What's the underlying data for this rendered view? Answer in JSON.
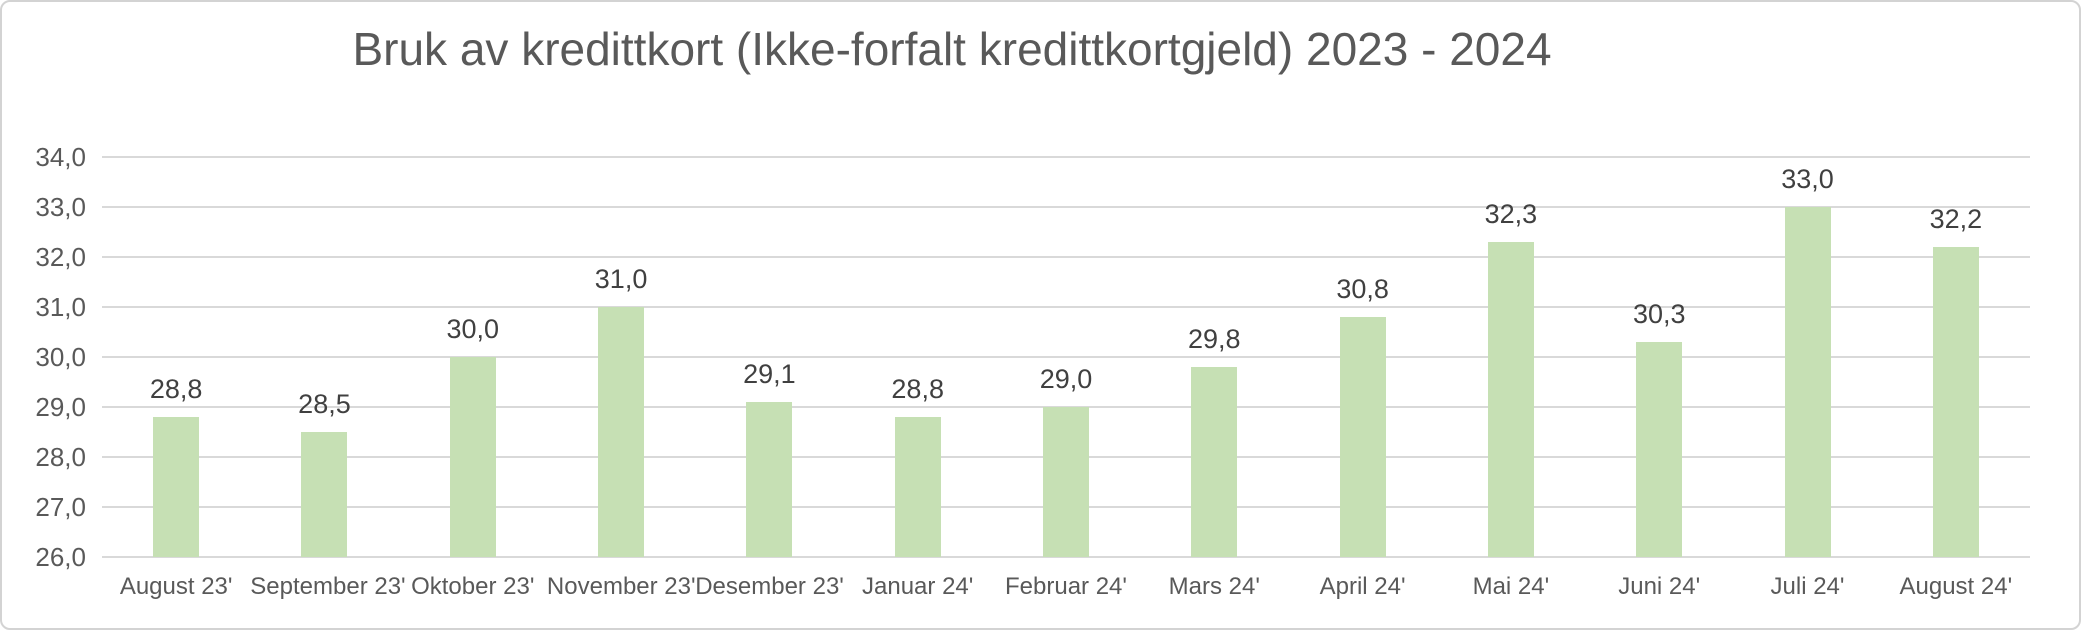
{
  "window": {
    "background_color": "#ffffff",
    "border_color": "#d3d3d3"
  },
  "chart_data": {
    "type": "bar",
    "title": "Bruk av kredittkort (Ikke-forfalt kredittkortgjeld) 2023 - 2024",
    "categories": [
      "August 23'",
      "September 23'",
      "Oktober 23'",
      "November 23'",
      "Desember 23'",
      "Januar 24'",
      "Februar 24'",
      "Mars 24'",
      "April 24'",
      "Mai 24'",
      "Juni 24'",
      "Juli 24'",
      "August 24'"
    ],
    "values": [
      28.8,
      28.5,
      30.0,
      31.0,
      29.1,
      28.8,
      29.0,
      29.8,
      30.8,
      32.3,
      30.3,
      33.0,
      32.2
    ],
    "value_labels": [
      "28,8",
      "28,5",
      "30,0",
      "31,0",
      "29,1",
      "28,8",
      "29,0",
      "29,8",
      "30,8",
      "32,3",
      "30,3",
      "33,0",
      "32,2"
    ],
    "xlabel": "",
    "ylabel": "",
    "ylim": [
      26.0,
      34.0
    ],
    "y_tick_step": 1.0,
    "y_tick_labels": [
      "26,0",
      "27,0",
      "28,0",
      "29,0",
      "30,0",
      "31,0",
      "32,0",
      "33,0",
      "34,0"
    ],
    "grid": true,
    "legend": "none",
    "decimal_separator": ",",
    "bar_color": "#c6e0b4",
    "gridline_color": "#d9d9d9",
    "title_color": "#595959",
    "axis_label_color": "#595959",
    "data_label_color": "#404040"
  }
}
